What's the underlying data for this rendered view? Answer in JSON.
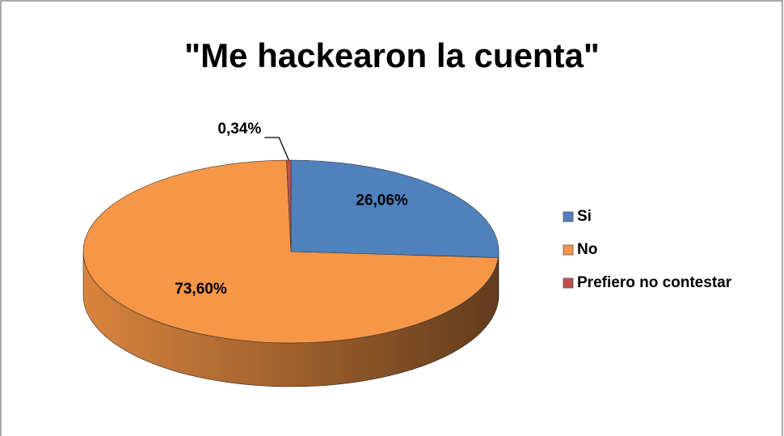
{
  "chart_data": {
    "type": "pie3d",
    "title": "\"Me hackearon la cuenta\"",
    "categories": [
      "Si",
      "No",
      "Prefiero no contestar"
    ],
    "values": [
      26.06,
      73.6,
      0.34
    ],
    "value_labels": [
      "26,06%",
      "73,60%",
      "0,34%"
    ],
    "colors": [
      "#4f81bd",
      "#f79646",
      "#c0504d"
    ],
    "legend": "right"
  }
}
